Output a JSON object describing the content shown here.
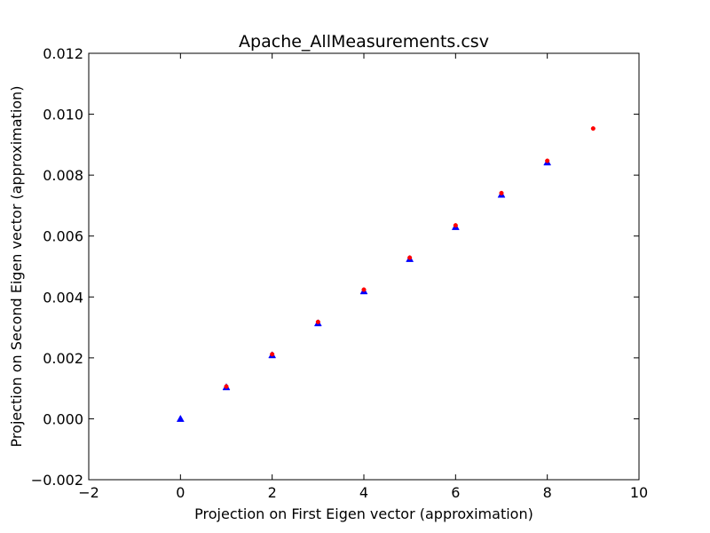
{
  "chart_data": {
    "type": "scatter",
    "title": "Apache_AllMeasurements.csv",
    "xlabel": "Projection on First Eigen vector (approximation)",
    "ylabel": "Projection on Second Eigen vector (approximation)",
    "xlim": [
      -2,
      10
    ],
    "ylim": [
      -0.002,
      0.012
    ],
    "x_ticks": [
      -2,
      0,
      2,
      4,
      6,
      8,
      10
    ],
    "x_tick_labels": [
      "−2",
      "0",
      "2",
      "4",
      "6",
      "8",
      "10"
    ],
    "y_ticks": [
      -0.002,
      0.0,
      0.002,
      0.004,
      0.006,
      0.008,
      0.01,
      0.012
    ],
    "y_tick_labels": [
      "−0.002",
      "0.000",
      "0.002",
      "0.004",
      "0.006",
      "0.008",
      "0.010",
      "0.012"
    ],
    "grid": false,
    "series": [
      {
        "name": "blue-triangles",
        "marker": "triangle",
        "color": "#0000ff",
        "points": [
          [
            0,
            0.0
          ],
          [
            1,
            0.00104
          ],
          [
            2,
            0.00209
          ],
          [
            3,
            0.00314
          ],
          [
            4,
            0.00419
          ],
          [
            5,
            0.00525
          ],
          [
            6,
            0.0063
          ],
          [
            7,
            0.00736
          ],
          [
            8,
            0.00842
          ]
        ]
      },
      {
        "name": "red-dots",
        "marker": "circle",
        "color": "#ff0000",
        "points": [
          [
            1,
            0.00106
          ],
          [
            2,
            0.00212
          ],
          [
            3,
            0.00318
          ],
          [
            4,
            0.00424
          ],
          [
            5,
            0.00529
          ],
          [
            6,
            0.00635
          ],
          [
            7,
            0.00741
          ],
          [
            8,
            0.00847
          ],
          [
            9,
            0.00953
          ]
        ]
      }
    ]
  }
}
